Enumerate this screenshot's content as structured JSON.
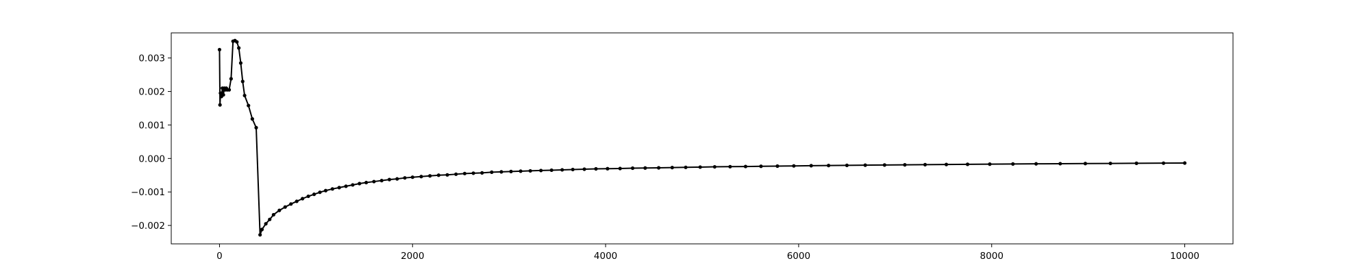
{
  "chart_data": {
    "type": "line",
    "title": "",
    "xlabel": "",
    "ylabel": "",
    "xlim": [
      -500,
      10500
    ],
    "ylim": [
      -0.00255,
      0.00375
    ],
    "grid": false,
    "legend": "none",
    "line_color": "#000000",
    "marker": "circle",
    "x_ticks": [
      {
        "value": 0,
        "label": "0"
      },
      {
        "value": 2000,
        "label": "2000"
      },
      {
        "value": 4000,
        "label": "4000"
      },
      {
        "value": 6000,
        "label": "6000"
      },
      {
        "value": 8000,
        "label": "8000"
      },
      {
        "value": 10000,
        "label": "10000"
      }
    ],
    "y_ticks": [
      {
        "value": 0.003,
        "label": "0.003"
      },
      {
        "value": 0.002,
        "label": "0.002"
      },
      {
        "value": 0.001,
        "label": "0.001"
      },
      {
        "value": 0.0,
        "label": "0.000"
      },
      {
        "value": -0.001,
        "label": "−0.001"
      },
      {
        "value": -0.002,
        "label": "−0.002"
      }
    ],
    "series": [
      {
        "x": [
          0,
          5,
          10,
          20,
          30,
          40,
          50,
          60,
          70,
          80,
          100,
          120,
          140,
          160,
          180,
          200,
          220,
          240,
          260,
          300,
          340,
          380,
          420,
          440,
          480,
          520,
          560,
          620,
          680,
          740,
          800,
          860,
          920,
          980,
          1040,
          1100,
          1170,
          1240,
          1310,
          1380,
          1450,
          1520,
          1600,
          1680,
          1760,
          1840,
          1920,
          2000,
          2090,
          2180,
          2270,
          2360,
          2450,
          2540,
          2630,
          2720,
          2820,
          2920,
          3020,
          3120,
          3220,
          3330,
          3440,
          3550,
          3660,
          3780,
          3900,
          4020,
          4150,
          4280,
          4410,
          4550,
          4690,
          4830,
          4980,
          5130,
          5290,
          5450,
          5610,
          5780,
          5950,
          6130,
          6310,
          6500,
          6690,
          6890,
          7100,
          7310,
          7530,
          7750,
          7980,
          8220,
          8460,
          8710,
          8970,
          9230,
          9500,
          9780,
          10000
        ],
        "y": [
          0.00325,
          0.0016,
          0.00195,
          0.00185,
          0.0021,
          0.0019,
          0.0021,
          0.00205,
          0.0021,
          0.00205,
          0.00205,
          0.00238,
          0.0035,
          0.00352,
          0.00348,
          0.0033,
          0.00285,
          0.0023,
          0.00188,
          0.00158,
          0.00118,
          0.00092,
          -0.00228,
          -0.00212,
          -0.00195,
          -0.00182,
          -0.00168,
          -0.00155,
          -0.00145,
          -0.00136,
          -0.00128,
          -0.0012,
          -0.00113,
          -0.00107,
          -0.00101,
          -0.00096,
          -0.00091,
          -0.00087,
          -0.00083,
          -0.00079,
          -0.00075,
          -0.00072,
          -0.00069,
          -0.00066,
          -0.00063,
          -0.00061,
          -0.00058,
          -0.00056,
          -0.00054,
          -0.00052,
          -0.0005,
          -0.00049,
          -0.00047,
          -0.00045,
          -0.00044,
          -0.00043,
          -0.00041,
          -0.0004,
          -0.00039,
          -0.00038,
          -0.00037,
          -0.00036,
          -0.00035,
          -0.00034,
          -0.00033,
          -0.00032,
          -0.00031,
          -0.000305,
          -0.0003,
          -0.00029,
          -0.000285,
          -0.00028,
          -0.000272,
          -0.000265,
          -0.000258,
          -0.00025,
          -0.000245,
          -0.00024,
          -0.000234,
          -0.000228,
          -0.000222,
          -0.000216,
          -0.00021,
          -0.000205,
          -0.0002,
          -0.000195,
          -0.00019,
          -0.000185,
          -0.00018,
          -0.000175,
          -0.00017,
          -0.000165,
          -0.00016,
          -0.000156,
          -0.000152,
          -0.000148,
          -0.000144,
          -0.00014,
          -0.000137
        ]
      }
    ]
  }
}
